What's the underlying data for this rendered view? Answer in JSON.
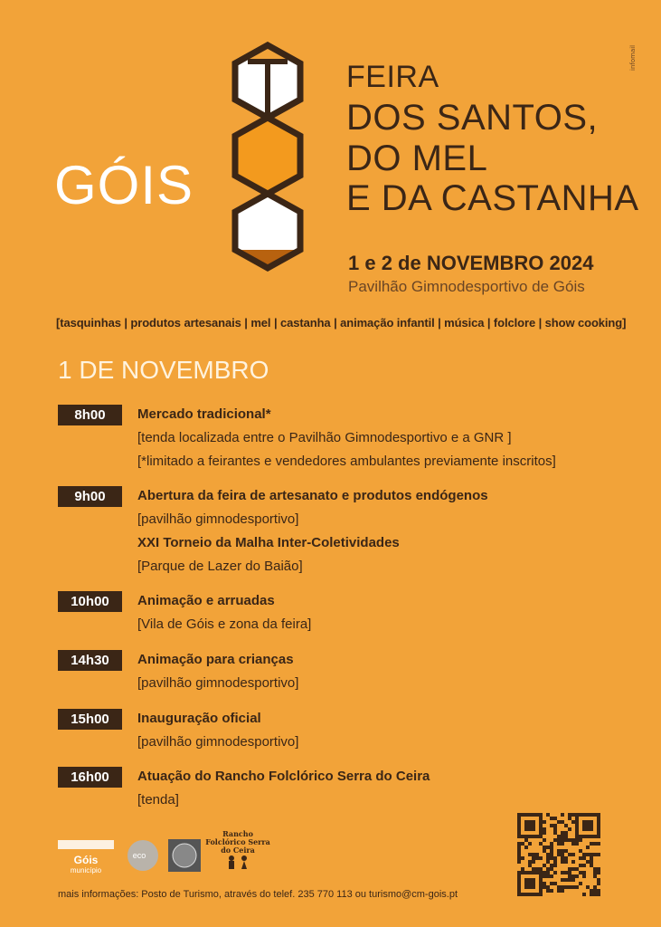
{
  "brand": {
    "town": "GÓIS",
    "title_line1": "FEIRA",
    "title_line2": "DOS SANTOS,",
    "title_line3": "DO MEL",
    "title_line4": "E DA CASTANHA"
  },
  "event": {
    "date": "1 e 2 de NOVEMBRO 2024",
    "venue": "Pavilhão Gimnodesportivo de Góis",
    "tags": "[tasquinhas | produtos artesanais | mel | castanha | animação infantil | música | folclore  | show cooking]"
  },
  "day": "1 DE NOVEMBRO",
  "schedule": [
    {
      "time": "8h00",
      "lines": [
        "Mercado tradicional*",
        "[tenda localizada entre o Pavilhão Gimnodesportivo e a GNR ]",
        "[*limitado a feirantes e vendedores ambulantes previamente inscritos]"
      ]
    },
    {
      "time": "9h00",
      "lines": [
        "Abertura da feira de artesanato e produtos endógenos",
        "[pavilhão gimnodesportivo]",
        "XXI Torneio da Malha Inter-Coletividades",
        "[Parque de Lazer do Baião]"
      ]
    },
    {
      "time": "10h00",
      "lines": [
        "Animação e arruadas",
        "[Vila de Góis e zona da feira]"
      ]
    },
    {
      "time": "14h30",
      "lines": [
        "Animação para crianças",
        "[pavilhão gimnodesportivo]"
      ]
    },
    {
      "time": "15h00",
      "lines": [
        "Inauguração oficial",
        "[pavilhão gimnodesportivo]"
      ]
    },
    {
      "time": "16h00",
      "lines": [
        "Atuação do Rancho Folclórico Serra do Ceira",
        "[tenda]"
      ]
    }
  ],
  "footer": {
    "info": "mais informações: Posto de Turismo, através do telef. 235 770 113 ou turismo@cm-gois.pt",
    "credit": "infomail",
    "logos": {
      "gois": "Góis",
      "gois_sub": "município",
      "eco": "eco",
      "rancho": "Rancho Folclórico Serra do Ceira"
    }
  },
  "colors": {
    "background": "#F2A339",
    "dark": "#3B2616",
    "accent": "#F39A1E",
    "honey": "#B8620F"
  }
}
